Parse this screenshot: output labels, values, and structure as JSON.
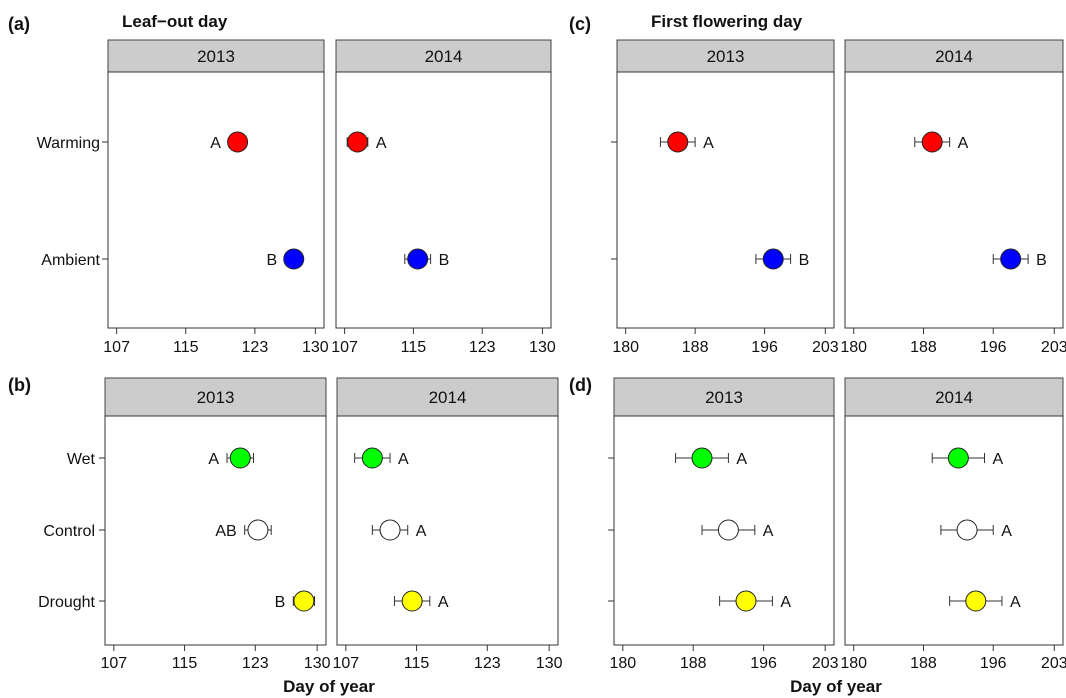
{
  "xlabel": "Day of year",
  "chart_data": [
    {
      "panel": "(a)",
      "title": "Leaf−out day",
      "type": "scatter",
      "categories": [
        "Warming",
        "Ambient"
      ],
      "facets": [
        "2013",
        "2014"
      ],
      "xlim": [
        106,
        131
      ],
      "xticks": [
        107,
        115,
        123,
        130
      ],
      "xlabel": "",
      "series": [
        {
          "facet": "2013",
          "category": "Warming",
          "value": 121,
          "err": 1,
          "letter": "A",
          "letter_side": "left",
          "color": "#ff0000"
        },
        {
          "facet": "2013",
          "category": "Ambient",
          "value": 127.5,
          "err": 1,
          "letter": "B",
          "letter_side": "left",
          "color": "#0000ff"
        },
        {
          "facet": "2014",
          "category": "Warming",
          "value": 108.5,
          "err": 1.2,
          "letter": "A",
          "letter_side": "right",
          "color": "#ff0000"
        },
        {
          "facet": "2014",
          "category": "Ambient",
          "value": 115.5,
          "err": 1.5,
          "letter": "B",
          "letter_side": "right",
          "color": "#0000ff"
        }
      ]
    },
    {
      "panel": "(b)",
      "title": "",
      "type": "scatter",
      "categories": [
        "Wet",
        "Control",
        "Drought"
      ],
      "facets": [
        "2013",
        "2014"
      ],
      "xlim": [
        106,
        131
      ],
      "xticks": [
        107,
        115,
        123,
        130
      ],
      "xlabel": "Day of year",
      "series": [
        {
          "facet": "2013",
          "category": "Wet",
          "value": 121.3,
          "err": 1.5,
          "letter": "A",
          "letter_side": "left",
          "color": "#00ff00"
        },
        {
          "facet": "2013",
          "category": "Control",
          "value": 123.3,
          "err": 1.5,
          "letter": "AB",
          "letter_side": "left",
          "color": "#ffffff"
        },
        {
          "facet": "2013",
          "category": "Drought",
          "value": 128.5,
          "err": 1.2,
          "letter": "B",
          "letter_side": "left",
          "color": "#ffff00"
        },
        {
          "facet": "2014",
          "category": "Wet",
          "value": 110,
          "err": 2,
          "letter": "A",
          "letter_side": "right",
          "color": "#00ff00"
        },
        {
          "facet": "2014",
          "category": "Control",
          "value": 112,
          "err": 2,
          "letter": "A",
          "letter_side": "right",
          "color": "#ffffff"
        },
        {
          "facet": "2014",
          "category": "Drought",
          "value": 114.5,
          "err": 2,
          "letter": "A",
          "letter_side": "right",
          "color": "#ffff00"
        }
      ]
    },
    {
      "panel": "(c)",
      "title": "First flowering day",
      "type": "scatter",
      "categories": [
        "Warming",
        "Ambient"
      ],
      "facets": [
        "2013",
        "2014"
      ],
      "xlim": [
        179,
        204
      ],
      "xticks": [
        180,
        188,
        196,
        203
      ],
      "xlabel": "",
      "series": [
        {
          "facet": "2013",
          "category": "Warming",
          "value": 186,
          "err": 2,
          "letter": "A",
          "letter_side": "right",
          "color": "#ff0000"
        },
        {
          "facet": "2013",
          "category": "Ambient",
          "value": 197,
          "err": 2,
          "letter": "B",
          "letter_side": "right",
          "color": "#0000ff"
        },
        {
          "facet": "2014",
          "category": "Warming",
          "value": 189,
          "err": 2,
          "letter": "A",
          "letter_side": "right",
          "color": "#ff0000"
        },
        {
          "facet": "2014",
          "category": "Ambient",
          "value": 198,
          "err": 2,
          "letter": "B",
          "letter_side": "right",
          "color": "#0000ff"
        }
      ]
    },
    {
      "panel": "(d)",
      "title": "",
      "type": "scatter",
      "categories": [
        "Wet",
        "Control",
        "Drought"
      ],
      "facets": [
        "2013",
        "2014"
      ],
      "xlim": [
        179,
        204
      ],
      "xticks": [
        180,
        188,
        196,
        203
      ],
      "xlabel": "Day of year",
      "series": [
        {
          "facet": "2013",
          "category": "Wet",
          "value": 189,
          "err": 3,
          "letter": "A",
          "letter_side": "right",
          "color": "#00ff00"
        },
        {
          "facet": "2013",
          "category": "Control",
          "value": 192,
          "err": 3,
          "letter": "A",
          "letter_side": "right",
          "color": "#ffffff"
        },
        {
          "facet": "2013",
          "category": "Drought",
          "value": 194,
          "err": 3,
          "letter": "A",
          "letter_side": "right",
          "color": "#ffff00"
        },
        {
          "facet": "2014",
          "category": "Wet",
          "value": 192,
          "err": 3,
          "letter": "A",
          "letter_side": "right",
          "color": "#00ff00"
        },
        {
          "facet": "2014",
          "category": "Control",
          "value": 193,
          "err": 3,
          "letter": "A",
          "letter_side": "right",
          "color": "#ffffff"
        },
        {
          "facet": "2014",
          "category": "Drought",
          "value": 194,
          "err": 3,
          "letter": "A",
          "letter_side": "right",
          "color": "#ffff00"
        }
      ]
    }
  ]
}
